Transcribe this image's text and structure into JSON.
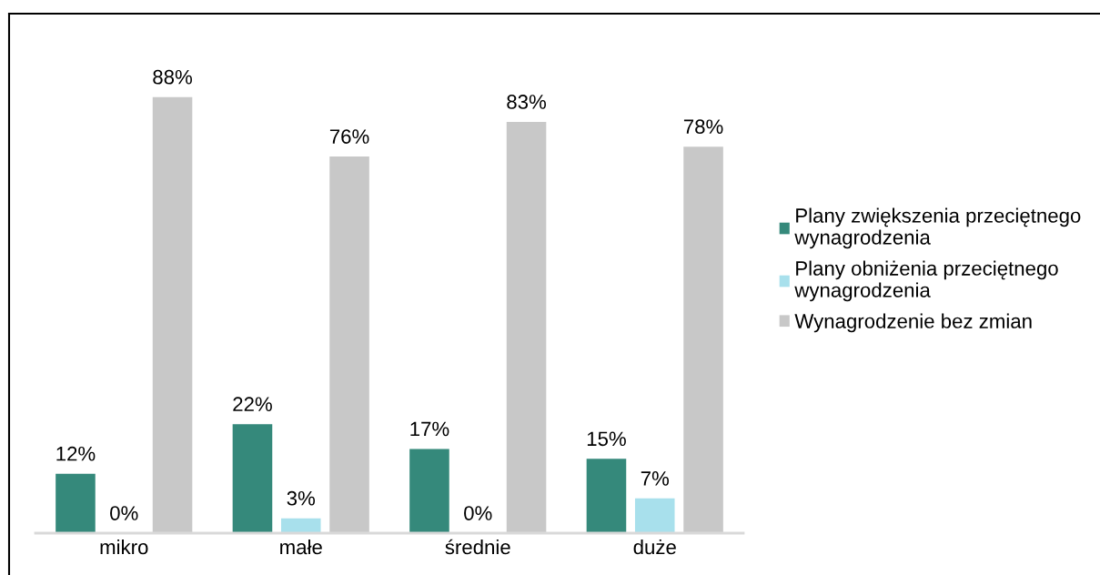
{
  "chart_data": {
    "type": "bar",
    "categories": [
      "mikro",
      "małe",
      "średnie",
      "duże"
    ],
    "series": [
      {
        "name": "Plany zwiększenia przeciętnego wynagrodzenia",
        "color": "#35897b",
        "values": [
          12,
          22,
          17,
          15
        ],
        "value_labels": [
          "12%",
          "22%",
          "17%",
          "15%"
        ]
      },
      {
        "name": "Plany obniżenia przeciętnego wynagrodzenia",
        "color": "#a8e0ec",
        "values": [
          0,
          3,
          0,
          7
        ],
        "value_labels": [
          "0%",
          "3%",
          "0%",
          "7%"
        ]
      },
      {
        "name": "Wynagrodzenie bez zmian",
        "color": "#c8c8c8",
        "values": [
          88,
          76,
          83,
          78
        ],
        "value_labels": [
          "88%",
          "76%",
          "83%",
          "78%"
        ]
      }
    ],
    "legend": "right",
    "grid": false,
    "tick_labels": "x"
  }
}
